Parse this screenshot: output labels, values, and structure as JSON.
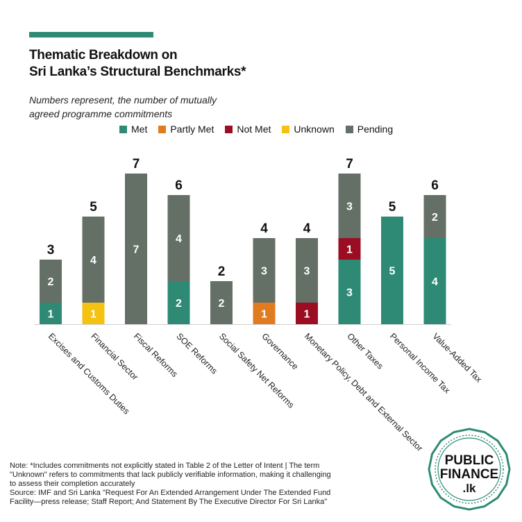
{
  "header": {
    "title_line1": "Thematic Breakdown on",
    "title_line2": "Sri Lanka’s Structural Benchmarks*",
    "subtitle_line1": "Numbers represent, the number of mutually",
    "subtitle_line2": "agreed programme commitments"
  },
  "colors": {
    "accent": "#2e8a74",
    "met": "#2e8a74",
    "partly_met": "#e07b1f",
    "not_met": "#9b0d22",
    "unknown": "#f5c211",
    "pending": "#646f66"
  },
  "legend": [
    {
      "label": "Met",
      "color": "#2e8a74"
    },
    {
      "label": "Partly Met",
      "color": "#e07b1f"
    },
    {
      "label": "Not Met",
      "color": "#9b0d22"
    },
    {
      "label": "Unknown",
      "color": "#f5c211"
    },
    {
      "label": "Pending",
      "color": "#646f66"
    }
  ],
  "chart_data": {
    "type": "bar",
    "stacked": true,
    "categories": [
      "Excises and Customs Duties",
      "Financial Sector",
      "Fiscal Reforms",
      "SOE Reforms",
      "Social Safety Net Reforms",
      "Governance",
      "Monetary Policy, Debt and External Sector",
      "Other Taxes",
      "Personal Income Tax",
      "Value-Added Tax"
    ],
    "series": [
      {
        "name": "Met",
        "color": "#2e8a74",
        "values": [
          1,
          0,
          0,
          2,
          0,
          0,
          0,
          3,
          5,
          4
        ]
      },
      {
        "name": "Partly Met",
        "color": "#e07b1f",
        "values": [
          0,
          0,
          0,
          0,
          0,
          1,
          0,
          0,
          0,
          0
        ]
      },
      {
        "name": "Not Met",
        "color": "#9b0d22",
        "values": [
          0,
          0,
          0,
          0,
          0,
          0,
          1,
          1,
          0,
          0
        ]
      },
      {
        "name": "Unknown",
        "color": "#f5c211",
        "values": [
          0,
          1,
          0,
          0,
          0,
          0,
          0,
          0,
          0,
          0
        ]
      },
      {
        "name": "Pending",
        "color": "#646f66",
        "values": [
          2,
          4,
          7,
          4,
          2,
          3,
          3,
          3,
          0,
          2
        ]
      }
    ],
    "totals": [
      3,
      5,
      7,
      6,
      2,
      4,
      4,
      7,
      5,
      6
    ],
    "ylim": [
      0,
      7
    ],
    "grid": false,
    "legend_position": "top"
  },
  "footer": {
    "note_line1": "Note: *Includes  commitments not explicitly stated in Table 2 of the Letter of Intent | The term",
    "note_line2": "\"Unknown\" refers to commitments that lack publicly verifiable information, making it challenging",
    "note_line3": "to assess their completion accurately",
    "source_line1": "Source: IMF and Sri Lanka \"Request For An Extended Arrangement Under The Extended Fund",
    "source_line2": "Facility—press release; Staff Report; And Statement By The Executive Director For Sri Lanka\""
  },
  "logo": {
    "line1": "PUBLIC",
    "line2": "FINANCE",
    "line3": ".lk"
  }
}
